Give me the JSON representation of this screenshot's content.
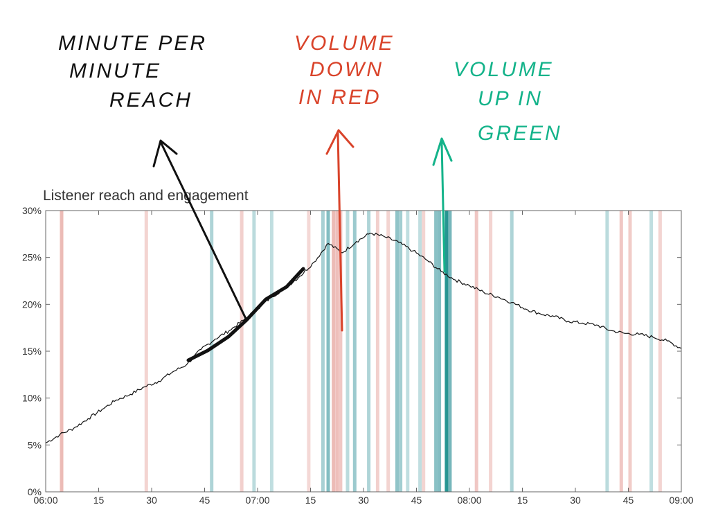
{
  "colors": {
    "line": "#111111",
    "volume_down": "#e08d86",
    "volume_up": "#5aa7ad",
    "volume_up_strong": "#0f8a86",
    "annotation_black": "#111111",
    "annotation_red": "#d9432a",
    "annotation_green": "#14b38a",
    "axis": "#666666"
  },
  "annotations": {
    "reach": [
      "MINUTE PER",
      "MINUTE",
      "REACH"
    ],
    "down": [
      "VOLUME",
      "DOWN",
      "IN RED"
    ],
    "up": [
      "VOLUME",
      "UP IN",
      "GREEN"
    ]
  },
  "chart_data": {
    "type": "line",
    "title": "Listener reach and engagement",
    "xlabel": "",
    "ylabel": "",
    "x_unit": "minutes after 06:00",
    "xlim": [
      0,
      180
    ],
    "ylim": [
      0,
      30
    ],
    "y_ticks": [
      "0%",
      "5%",
      "10%",
      "15%",
      "20%",
      "25%",
      "30%"
    ],
    "x_ticks": [
      "06:00",
      "15",
      "30",
      "45",
      "07:00",
      "15",
      "30",
      "45",
      "08:00",
      "15",
      "30",
      "45",
      "09:00"
    ],
    "grid": false,
    "series": [
      {
        "x": [
          0,
          4,
          8,
          12,
          16,
          20,
          24,
          28,
          32,
          36,
          40,
          44,
          48,
          52,
          56,
          60,
          64,
          68,
          72,
          76,
          80,
          84,
          88,
          92,
          96,
          100,
          104,
          108,
          112,
          116,
          120,
          124,
          128,
          132,
          136,
          140,
          144,
          148,
          152,
          156,
          160,
          164,
          168,
          172,
          176,
          180
        ],
        "values": [
          5.2,
          6.1,
          6.8,
          7.8,
          8.8,
          9.8,
          10.4,
          11.2,
          11.8,
          12.8,
          13.6,
          15.2,
          16.3,
          17.2,
          18.3,
          19.5,
          20.8,
          21.8,
          23.0,
          24.5,
          26.5,
          25.5,
          26.7,
          27.6,
          27.2,
          26.6,
          25.7,
          24.7,
          23.5,
          22.6,
          22.0,
          21.3,
          20.8,
          20.2,
          19.5,
          19.0,
          18.7,
          18.2,
          18.0,
          17.8,
          17.2,
          16.9,
          16.8,
          16.5,
          16.1,
          15.3
        ]
      }
    ],
    "volume_down_bands": [
      {
        "x": 4.5,
        "intensity": 0.6
      },
      {
        "x": 28.5,
        "intensity": 0.3
      },
      {
        "x": 55.5,
        "intensity": 0.35
      },
      {
        "x": 74.5,
        "intensity": 0.25
      },
      {
        "x": 81.5,
        "intensity": 0.6
      },
      {
        "x": 82.5,
        "intensity": 0.55
      },
      {
        "x": 83.5,
        "intensity": 0.45
      },
      {
        "x": 94,
        "intensity": 0.35
      },
      {
        "x": 97,
        "intensity": 0.3
      },
      {
        "x": 107,
        "intensity": 0.3
      },
      {
        "x": 122,
        "intensity": 0.45
      },
      {
        "x": 126,
        "intensity": 0.3
      },
      {
        "x": 163,
        "intensity": 0.45
      },
      {
        "x": 165.5,
        "intensity": 0.4
      },
      {
        "x": 174,
        "intensity": 0.3
      }
    ],
    "volume_up_bands": [
      {
        "x": 47,
        "intensity": 0.45
      },
      {
        "x": 59,
        "intensity": 0.35
      },
      {
        "x": 64,
        "intensity": 0.3
      },
      {
        "x": 78.5,
        "intensity": 0.5
      },
      {
        "x": 80,
        "intensity": 0.8
      },
      {
        "x": 85.5,
        "intensity": 0.35
      },
      {
        "x": 87.5,
        "intensity": 0.6
      },
      {
        "x": 91.5,
        "intensity": 0.45
      },
      {
        "x": 99.5,
        "intensity": 0.7
      },
      {
        "x": 100.5,
        "intensity": 0.55
      },
      {
        "x": 102.5,
        "intensity": 0.3
      },
      {
        "x": 106,
        "intensity": 0.3
      },
      {
        "x": 110.5,
        "intensity": 0.75
      },
      {
        "x": 111.5,
        "intensity": 0.8
      },
      {
        "x": 113.5,
        "intensity": 1.0
      },
      {
        "x": 114.5,
        "intensity": 0.9
      },
      {
        "x": 132,
        "intensity": 0.45
      },
      {
        "x": 159,
        "intensity": 0.35
      },
      {
        "x": 171.5,
        "intensity": 0.3
      }
    ]
  }
}
